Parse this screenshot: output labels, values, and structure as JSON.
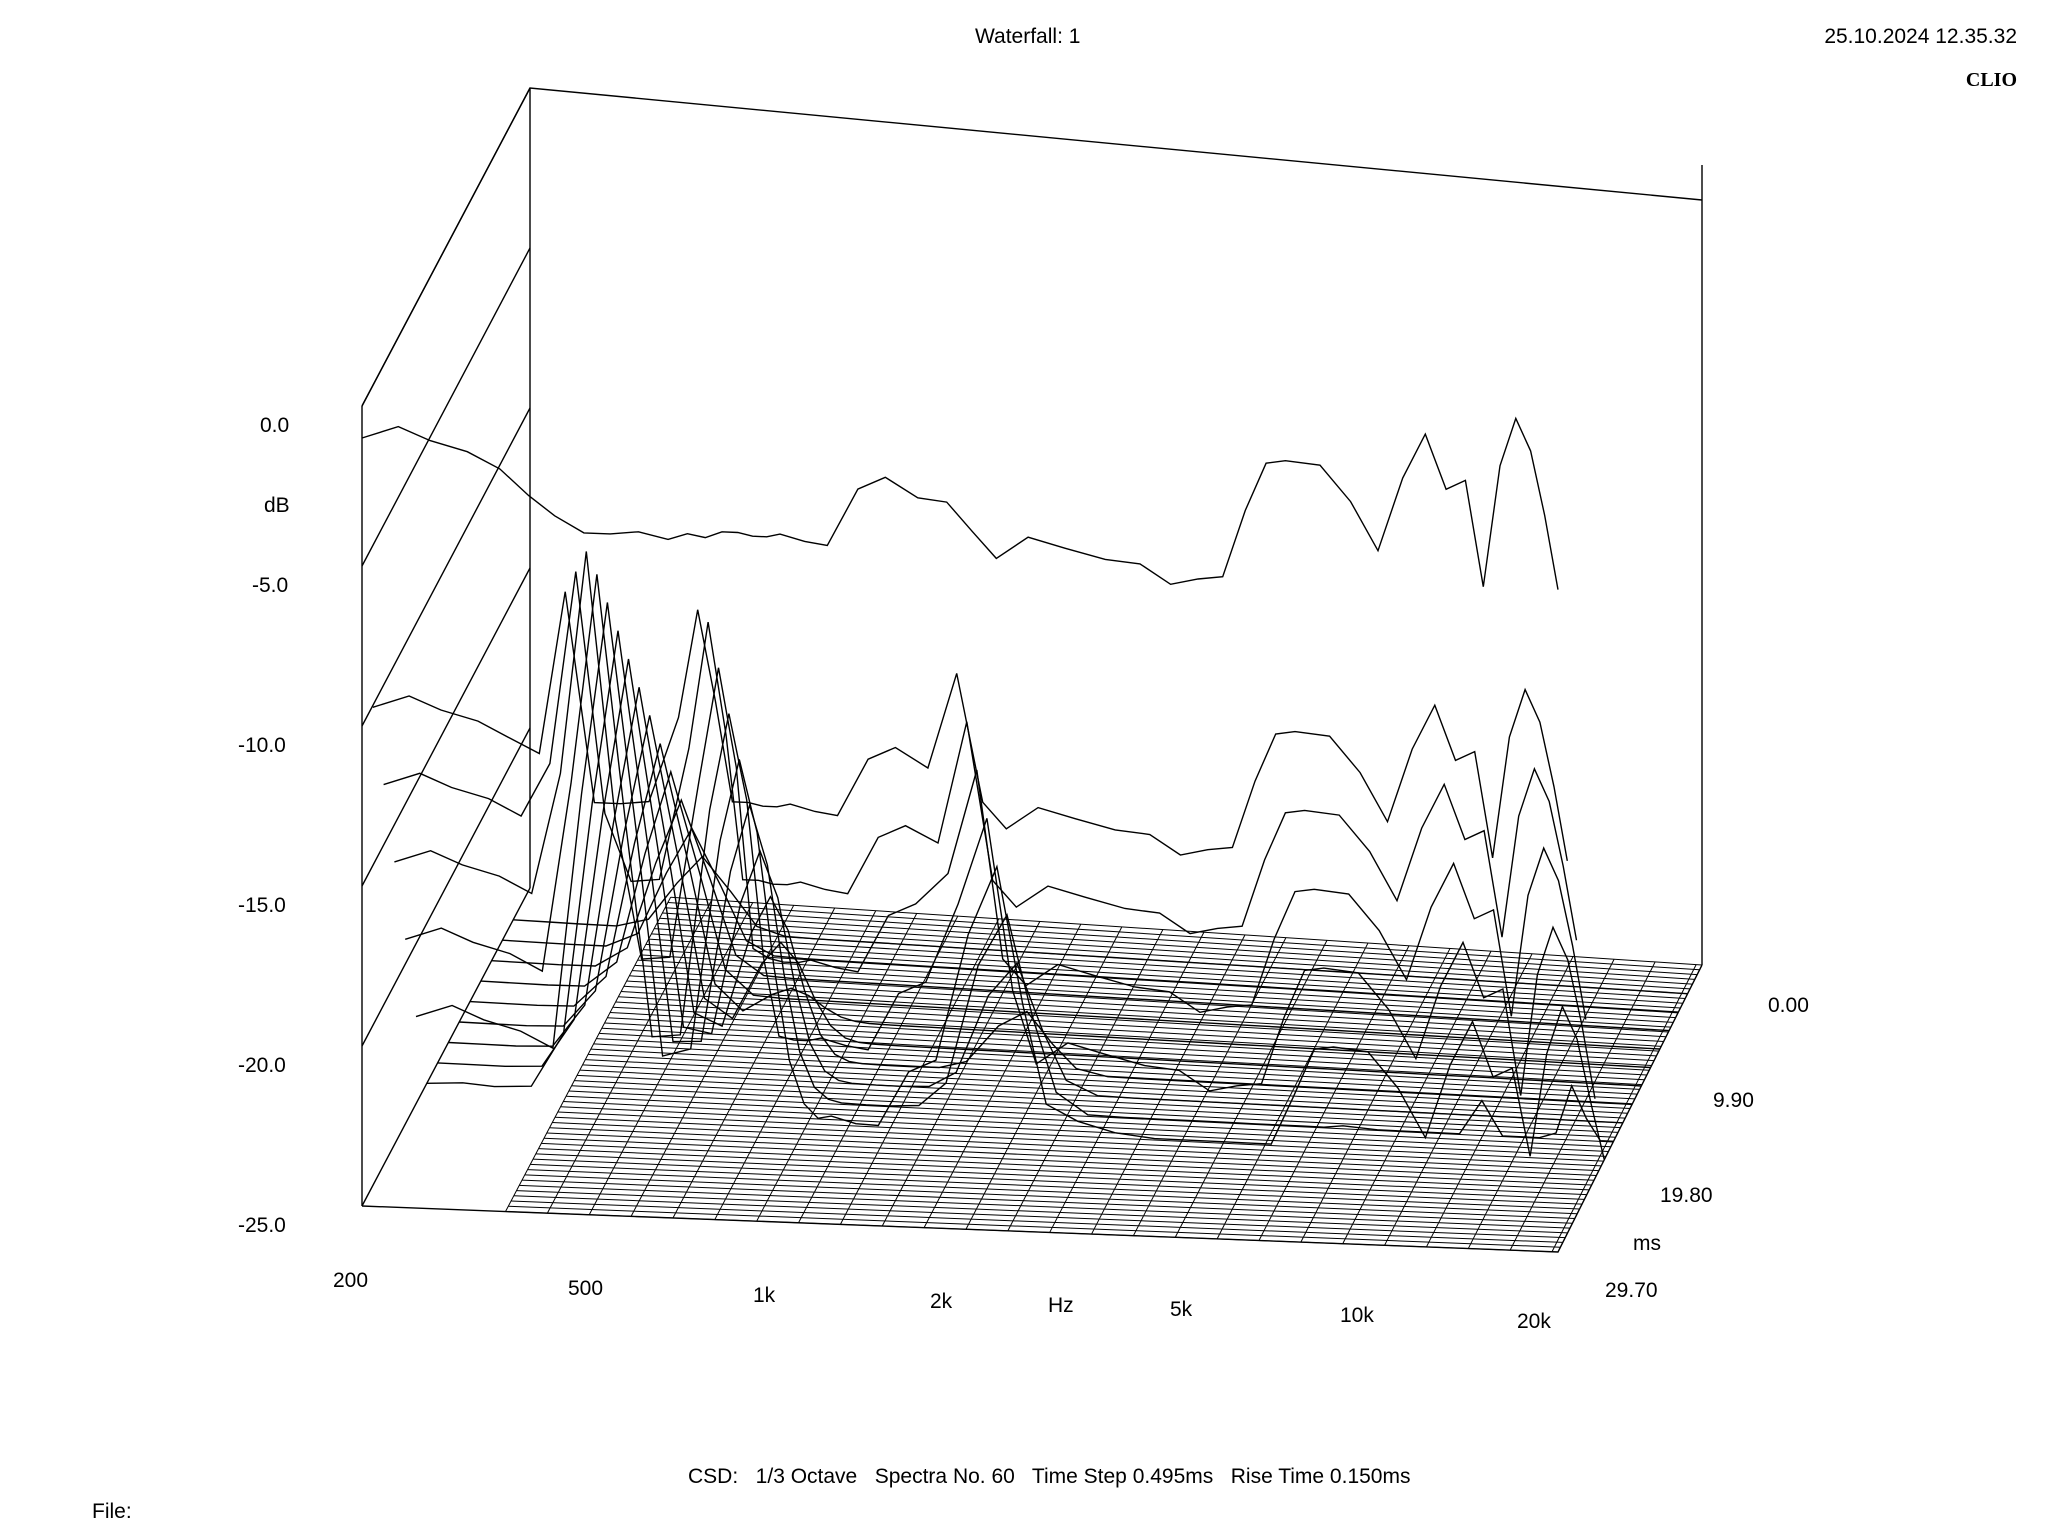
{
  "header": {
    "title": "Waterfall: 1",
    "timestamp": "25.10.2024 12.35.32",
    "brand": "CLIO"
  },
  "footer": {
    "settings": "CSD:   1/3 Octave   Spectra No. 60   Time Step 0.495ms   Rise Time 0.150ms",
    "file_label": "File:"
  },
  "chart_data": {
    "type": "waterfall",
    "y_axis": {
      "label": "dB",
      "ticks": [
        "0.0",
        "-5.0",
        "-10.0",
        "-15.0",
        "-20.0",
        "-25.0"
      ],
      "range": [
        -25,
        0
      ]
    },
    "x_axis": {
      "label": "Hz",
      "scale": "log",
      "ticks": [
        "200",
        "500",
        "1k",
        "2k",
        "5k",
        "10k",
        "20k"
      ],
      "range": [
        200,
        20000
      ]
    },
    "z_axis": {
      "label": "ms",
      "ticks": [
        "0.00",
        "9.90",
        "19.80",
        "29.70"
      ],
      "range": [
        0,
        29.7
      ]
    },
    "spectra_count": 60,
    "time_step_ms": 0.495,
    "rise_time_ms": 0.15,
    "front_slice_db": {
      "freq_hz": [
        200,
        230,
        260,
        300,
        340,
        380,
        420,
        470,
        520,
        580,
        650,
        700,
        750,
        800,
        850,
        900,
        950,
        1000,
        1100,
        1200,
        1350,
        1500,
        1700,
        1900,
        2100,
        2300,
        2600,
        3000,
        3500,
        4000,
        4500,
        5000,
        5500,
        6000,
        6500,
        7000,
        8000,
        9000,
        10000,
        11000,
        12000,
        13000,
        14000,
        15000,
        16000,
        17000,
        18000,
        19000,
        20000
      ],
      "db": [
        -1.0,
        -0.6,
        -1.0,
        -1.3,
        -1.8,
        -2.6,
        -3.2,
        -3.7,
        -3.7,
        -3.6,
        -3.8,
        -3.6,
        -3.7,
        -3.5,
        -3.5,
        -3.6,
        -3.6,
        -3.5,
        -3.7,
        -3.8,
        -2.0,
        -1.6,
        -2.2,
        -2.3,
        -3.2,
        -4.0,
        -3.3,
        -3.6,
        -3.9,
        -4.0,
        -4.6,
        -4.4,
        -4.3,
        -2.2,
        -0.7,
        -0.6,
        -0.7,
        -1.8,
        -3.3,
        -1.0,
        0.4,
        -1.3,
        -1.0,
        -4.3,
        -0.5,
        1.0,
        0.0,
        -2.0,
        -4.3
      ]
    },
    "decay_peaks": [
      {
        "freq_hz": 420,
        "db_at_0ms": -1.5,
        "decay_ms": 29.7
      },
      {
        "freq_hz": 700,
        "db_at_0ms": -3.5,
        "decay_ms": 20.0
      },
      {
        "freq_hz": 1850,
        "db_at_0ms": -5.5,
        "decay_ms": 17.0
      },
      {
        "freq_hz": 3000,
        "db_at_0ms": -8.0,
        "decay_ms": 6.0
      },
      {
        "freq_hz": 12000,
        "db_at_0ms": -12.5,
        "decay_ms": 8.0
      }
    ]
  }
}
